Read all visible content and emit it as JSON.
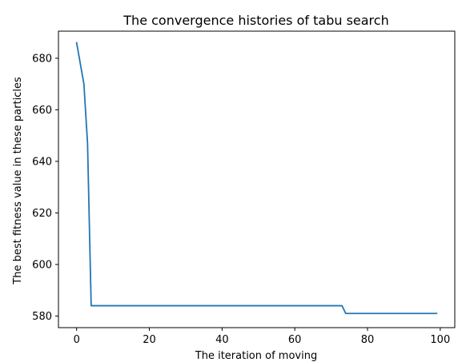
{
  "chart_data": {
    "type": "line",
    "title": "The convergence histories of tabu search",
    "xlabel": "The iteration of moving",
    "ylabel": "The best fitness value in these particles",
    "xlim": [
      -5,
      104
    ],
    "ylim": [
      575.5,
      690.5
    ],
    "xticks": [
      0,
      20,
      40,
      60,
      80,
      100
    ],
    "yticks": [
      580,
      600,
      620,
      640,
      660,
      680
    ],
    "grid": false,
    "series": [
      {
        "color": "#1f77b4",
        "x": [
          0,
          1,
          2,
          3,
          4,
          5,
          73,
          74,
          99
        ],
        "y": [
          686,
          678,
          670,
          647,
          584,
          584,
          584,
          581,
          581
        ]
      }
    ]
  }
}
